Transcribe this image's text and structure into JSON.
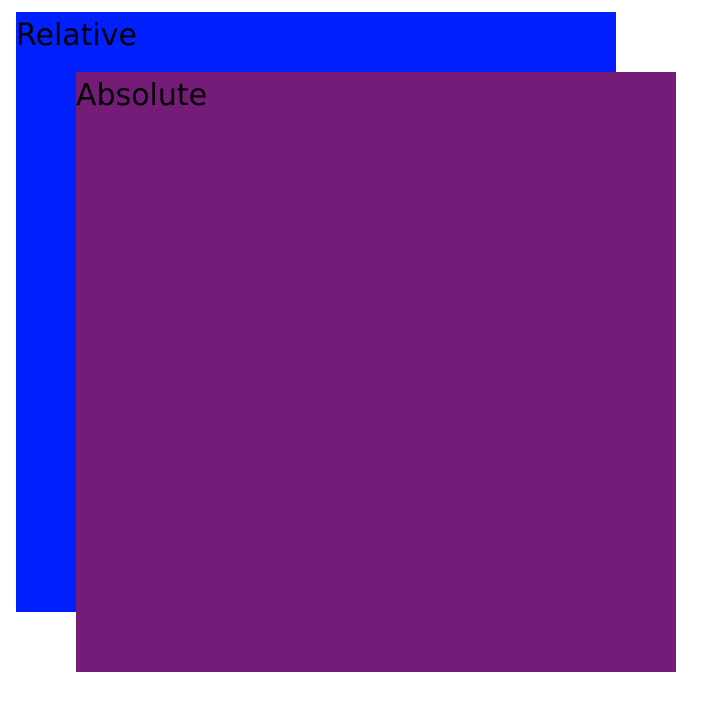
{
  "relative_box": {
    "label": "Relative",
    "color": "#001ffd"
  },
  "absolute_box": {
    "label": "Absolute",
    "color": "#751b78"
  }
}
